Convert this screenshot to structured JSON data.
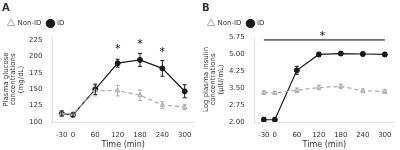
{
  "chart_data": [
    {
      "type": "line",
      "title": "A",
      "xlabel": "Time (min)",
      "ylabel": "Plasma glucose\nconcentrations\n(mg/dL)",
      "x": [
        -30,
        0,
        60,
        120,
        180,
        240,
        300
      ],
      "xlim": [
        -55,
        325
      ],
      "xticks": [
        -30,
        0,
        60,
        120,
        180,
        240,
        300
      ],
      "ylim": [
        100,
        230
      ],
      "yticks": [
        100,
        125,
        150,
        175,
        200,
        225
      ],
      "grid": false,
      "legend": "upper left",
      "series": [
        {
          "name": "Non-ID",
          "color": "#aaaaaa",
          "marker": "triangle_open",
          "line_style": "dashed",
          "values": [
            113,
            112,
            148,
            148,
            141,
            126,
            123
          ],
          "errors": [
            3,
            3,
            8,
            8,
            8,
            5,
            4
          ]
        },
        {
          "name": "ID",
          "color": "#1a1a1a",
          "marker": "circle",
          "line_style": "solid",
          "values": [
            113,
            111,
            150,
            190,
            195,
            182,
            147
          ],
          "errors": [
            4,
            3,
            8,
            6,
            10,
            12,
            10
          ]
        }
      ],
      "annotations": [
        {
          "text": "*",
          "x": 120,
          "y": 206
        },
        {
          "text": "*",
          "x": 180,
          "y": 213
        },
        {
          "text": "*",
          "x": 240,
          "y": 202
        }
      ]
    },
    {
      "type": "line",
      "title": "B",
      "xlabel": "Time (min)",
      "ylabel": "Log plasma insulin\nconcentrations\n(μIU/mL)",
      "x": [
        -30,
        0,
        60,
        120,
        180,
        240,
        300
      ],
      "xlim": [
        -55,
        325
      ],
      "xticks": [
        -30,
        0,
        60,
        120,
        180,
        240,
        300
      ],
      "ylim": [
        2.0,
        5.75
      ],
      "yticks": [
        {
          "value": 2.0,
          "label": "2.00"
        },
        2.75,
        {
          "value": 3.5,
          "label": "3.50"
        },
        4.25,
        {
          "value": 5.0,
          "label": "5.00"
        },
        5.75
      ],
      "grid": false,
      "legend": "upper left",
      "series": [
        {
          "name": "Non-ID",
          "color": "#aaaaaa",
          "marker": "triangle_open",
          "line_style": "dashed",
          "values": [
            3.3,
            3.28,
            3.4,
            3.52,
            3.57,
            3.38,
            3.35
          ],
          "errors": [
            0.08,
            0.07,
            0.1,
            0.1,
            0.1,
            0.08,
            0.09
          ]
        },
        {
          "name": "ID",
          "color": "#1a1a1a",
          "marker": "circle",
          "line_style": "solid",
          "values": [
            2.1,
            2.1,
            4.28,
            4.98,
            5.02,
            5.0,
            4.98
          ],
          "errors": [
            0.1,
            0.08,
            0.18,
            0.09,
            0.08,
            0.08,
            0.09
          ]
        }
      ],
      "annotations": [
        {
          "type": "line",
          "x": [
            -30,
            300
          ],
          "y": [
            5.62,
            5.62
          ]
        },
        {
          "text": "*",
          "x": 130,
          "y": 5.63
        }
      ]
    }
  ]
}
